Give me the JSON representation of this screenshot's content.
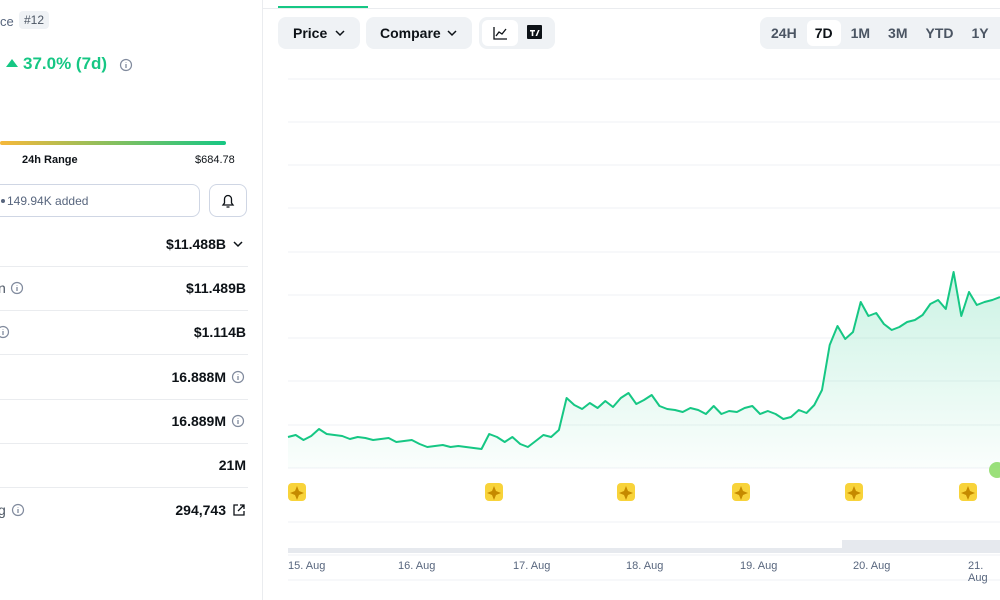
{
  "rank_label": "ce",
  "rank": "#12",
  "change": "37.0% (7d)",
  "range_label": "24h Range",
  "range_high": "$684.78",
  "watchlist": "149.94K added",
  "stats": [
    {
      "value": "$11.488B"
    },
    {
      "label": "n",
      "value": "$11.489B"
    },
    {
      "value": "$1.114B"
    },
    {
      "value": "16.888M"
    },
    {
      "value": "16.889M"
    },
    {
      "value": "21M"
    },
    {
      "label": "g",
      "value": "294,743"
    }
  ],
  "toolbar": {
    "price": "Price",
    "compare": "Compare",
    "ranges": [
      "24H",
      "7D",
      "1M",
      "3M",
      "YTD",
      "1Y"
    ],
    "selected_range": 1
  },
  "chart": {
    "type": "line",
    "color": "#16c784",
    "x_labels": [
      "15. Aug",
      "16. Aug",
      "17. Aug",
      "18. Aug",
      "19. Aug",
      "20. Aug",
      "21. Aug"
    ],
    "ylim": [
      0,
      389
    ],
    "values": [
      31,
      33,
      28,
      32,
      39,
      34,
      33,
      32,
      29,
      31,
      30,
      28,
      29,
      30,
      26,
      27,
      28,
      24,
      21,
      22,
      23,
      21,
      22,
      21,
      20,
      19,
      34,
      31,
      26,
      31,
      24,
      21,
      27,
      33,
      31,
      38,
      70,
      63,
      59,
      65,
      60,
      67,
      61,
      70,
      75,
      64,
      68,
      73,
      62,
      59,
      58,
      56,
      60,
      58,
      54,
      62,
      54,
      57,
      56,
      60,
      62,
      54,
      57,
      54,
      49,
      51,
      58,
      55,
      63,
      78,
      123,
      142,
      129,
      136,
      166,
      152,
      155,
      144,
      138,
      141,
      146,
      148,
      153,
      164,
      168,
      159,
      196,
      152,
      176,
      163,
      166,
      168,
      171
    ]
  }
}
